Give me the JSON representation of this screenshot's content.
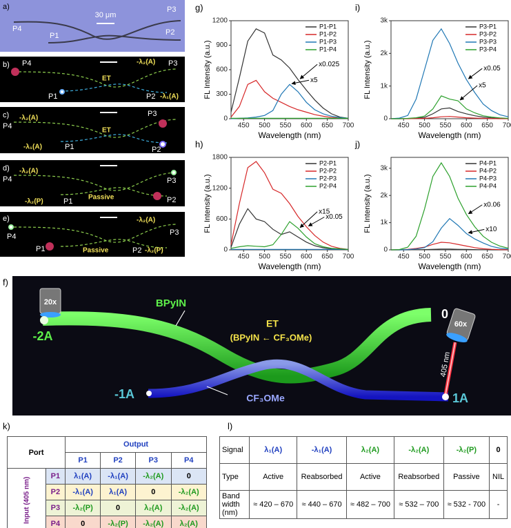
{
  "micrographs": {
    "a": {
      "panel": "a)",
      "scale_bar": "30 μm",
      "p3": "P3",
      "p4": "P4",
      "p1": "P1",
      "p2": "P2"
    },
    "b": {
      "panel": "b)",
      "p4": "P4",
      "upper_signal": "-λ₂(A)",
      "p3": "P3",
      "transfer": "ET",
      "p1": "P1",
      "p2": "P2",
      "lower_signal": "-λ₁(A)"
    },
    "c": {
      "panel": "c)",
      "p4": "P4",
      "upper_signal": "-λ₂(A)",
      "p3": "P3",
      "transfer": "ET",
      "lower_signal": "-λ₁(A)",
      "p1": "P1",
      "p2": "P2"
    },
    "d": {
      "panel": "d)",
      "p4": "P4",
      "upper_signal": "-λ₂(A)",
      "p3": "P3",
      "transfer": "Passive",
      "lower_signal": "-λ₂(P)",
      "p1": "P1",
      "p2": "P2"
    },
    "e": {
      "panel": "e)",
      "upper_signal": "-λ₂(A)",
      "p3": "P3",
      "p4": "P4",
      "p1": "P1",
      "transfer": "Passive",
      "p2": "P2",
      "lower_signal": "-λ₂(P)"
    }
  },
  "chart_data": [
    {
      "type": "line",
      "panel": "g)",
      "xlabel": "Wavelength (nm)",
      "ylabel": "FL Intensity (a.u.)",
      "x": [
        420,
        440,
        460,
        480,
        500,
        520,
        540,
        560,
        580,
        600,
        620,
        640,
        660,
        680,
        700
      ],
      "xlim": [
        420,
        700
      ],
      "xticks": [
        450,
        500,
        550,
        600,
        650,
        700
      ],
      "ylim": [
        0,
        1200
      ],
      "yticks": [
        0,
        300,
        600,
        900,
        1200
      ],
      "legend": "upper right",
      "series": [
        {
          "name": "P1-P1",
          "color": "#333333",
          "values": [
            80,
            500,
            950,
            1100,
            1050,
            780,
            720,
            620,
            480,
            350,
            230,
            130,
            60,
            20,
            5
          ]
        },
        {
          "name": "P1-P2",
          "color": "#d62728",
          "values": [
            20,
            150,
            420,
            470,
            330,
            250,
            200,
            150,
            110,
            80,
            50,
            30,
            15,
            8,
            5
          ]
        },
        {
          "name": "P1-P3",
          "color": "#1f77b4",
          "values": [
            0,
            5,
            10,
            20,
            40,
            100,
            300,
            420,
            330,
            200,
            110,
            60,
            30,
            15,
            5
          ]
        },
        {
          "name": "P1-P4",
          "color": "#2ca02c",
          "values": [
            5,
            5,
            5,
            5,
            5,
            5,
            5,
            5,
            5,
            5,
            5,
            5,
            5,
            5,
            5
          ]
        }
      ],
      "annotations": [
        "x0.025",
        "x5"
      ]
    },
    {
      "type": "line",
      "panel": "i)",
      "xlabel": "Wavelength (nm)",
      "ylabel": "FL Intensity (a.u.)",
      "x": [
        420,
        440,
        460,
        480,
        500,
        520,
        540,
        560,
        580,
        600,
        620,
        640,
        660,
        680,
        700
      ],
      "xlim": [
        420,
        700
      ],
      "xticks": [
        450,
        500,
        550,
        600,
        650,
        700
      ],
      "ylim": [
        0,
        3000
      ],
      "yticks": [
        0,
        {
          "value": 1000,
          "label": "1k"
        },
        {
          "value": 2000,
          "label": "2k"
        },
        {
          "value": 3000,
          "label": "3k"
        }
      ],
      "legend": "upper right",
      "series": [
        {
          "name": "P3-P1",
          "color": "#333333",
          "values": [
            0,
            0,
            5,
            15,
            40,
            150,
            300,
            330,
            220,
            150,
            90,
            50,
            25,
            10,
            5
          ]
        },
        {
          "name": "P3-P2",
          "color": "#d62728",
          "values": [
            0,
            0,
            0,
            5,
            10,
            30,
            60,
            70,
            50,
            30,
            20,
            10,
            5,
            0,
            0
          ]
        },
        {
          "name": "P3-P3",
          "color": "#1f77b4",
          "values": [
            0,
            20,
            100,
            600,
            1500,
            2400,
            2750,
            2300,
            1700,
            1200,
            800,
            450,
            250,
            120,
            60
          ]
        },
        {
          "name": "P3-P4",
          "color": "#2ca02c",
          "values": [
            0,
            0,
            10,
            30,
            80,
            300,
            700,
            600,
            550,
            300,
            180,
            90,
            50,
            25,
            10
          ]
        }
      ],
      "annotations": [
        "x0.05",
        "x5"
      ]
    },
    {
      "type": "line",
      "panel": "h)",
      "xlabel": "Wavelength (nm)",
      "ylabel": "FL Intensity (a.u.)",
      "x": [
        420,
        440,
        460,
        480,
        500,
        520,
        540,
        560,
        580,
        600,
        620,
        640,
        660,
        680,
        700
      ],
      "xlim": [
        420,
        700
      ],
      "xticks": [
        450,
        500,
        550,
        600,
        650,
        700
      ],
      "ylim": [
        0,
        1800
      ],
      "yticks": [
        0,
        600,
        1200,
        1800
      ],
      "legend": "upper right",
      "series": [
        {
          "name": "P2-P1",
          "color": "#333333",
          "values": [
            50,
            500,
            800,
            600,
            550,
            400,
            300,
            350,
            250,
            150,
            80,
            40,
            20,
            10,
            5
          ]
        },
        {
          "name": "P2-P2",
          "color": "#d62728",
          "values": [
            100,
            900,
            1600,
            1720,
            1500,
            1180,
            1100,
            900,
            650,
            450,
            280,
            150,
            70,
            30,
            10
          ]
        },
        {
          "name": "P2-P3",
          "color": "#1f77b4",
          "values": [
            10,
            10,
            10,
            10,
            10,
            10,
            10,
            10,
            10,
            10,
            10,
            10,
            10,
            10,
            10
          ]
        },
        {
          "name": "P2-P4",
          "color": "#2ca02c",
          "values": [
            30,
            60,
            80,
            70,
            60,
            100,
            300,
            550,
            420,
            250,
            120,
            60,
            30,
            20,
            10
          ]
        }
      ],
      "annotations": [
        "x0.05",
        "x15"
      ]
    },
    {
      "type": "line",
      "panel": "j)",
      "xlabel": "Wavelength (nm)",
      "ylabel": "FL Intensity (a.u.)",
      "x": [
        420,
        440,
        460,
        480,
        500,
        520,
        540,
        560,
        580,
        600,
        620,
        640,
        660,
        680,
        700
      ],
      "xlim": [
        420,
        700
      ],
      "xticks": [
        450,
        500,
        550,
        600,
        650,
        700
      ],
      "ylim": [
        0,
        3400
      ],
      "yticks": [
        0,
        {
          "value": 1000,
          "label": "1k"
        },
        {
          "value": 2000,
          "label": "2k"
        },
        {
          "value": 3000,
          "label": "3k"
        }
      ],
      "legend": "upper right",
      "series": [
        {
          "name": "P4-P1",
          "color": "#333333",
          "values": [
            0,
            0,
            0,
            5,
            10,
            20,
            30,
            30,
            20,
            15,
            10,
            5,
            0,
            0,
            0
          ]
        },
        {
          "name": "P4-P2",
          "color": "#d62728",
          "values": [
            0,
            0,
            20,
            50,
            100,
            200,
            280,
            260,
            200,
            140,
            80,
            40,
            20,
            10,
            5
          ]
        },
        {
          "name": "P4-P3",
          "color": "#1f77b4",
          "values": [
            0,
            0,
            10,
            30,
            80,
            300,
            800,
            1150,
            900,
            600,
            400,
            250,
            130,
            60,
            30
          ]
        },
        {
          "name": "P4-P4",
          "color": "#2ca02c",
          "values": [
            0,
            10,
            100,
            500,
            1500,
            2700,
            3200,
            2700,
            1900,
            1300,
            850,
            500,
            280,
            140,
            60
          ]
        }
      ],
      "annotations": [
        "x0.06",
        "x10"
      ]
    }
  ],
  "schematic": {
    "panel": "f)",
    "objective_left": "20x",
    "upper_fiber": "BPyIN",
    "process": "ET",
    "process_detail": "(BPyIN ← CF₃OMe)",
    "output_top_right": "0",
    "objective_right": "60x",
    "laser": "405 nm",
    "output_left_upper": "-2A",
    "output_left_lower": "-1A",
    "lower_fiber": "CF₃OMe",
    "input_right": "1A"
  },
  "port_table": {
    "panel": "k)",
    "corner": "Port",
    "output": "Output",
    "input": "Input (405 nm)",
    "columns": [
      "P1",
      "P2",
      "P3",
      "P4"
    ],
    "row_colors": [
      "#dbe5f5",
      "#fdf3d0",
      "#eef3d6",
      "#f9d9cc"
    ],
    "rows": [
      {
        "port": "P1",
        "cells": [
          "λ₁(A)",
          "-λ₁(A)",
          "-λ₂(A)",
          "0"
        ],
        "colors": [
          "#1f3fbf",
          "#1f3fbf",
          "#1e9a1e",
          "#000000"
        ]
      },
      {
        "port": "P2",
        "cells": [
          "-λ₁(A)",
          "λ₁(A)",
          "0",
          "-λ₂(A)"
        ],
        "colors": [
          "#1f3fbf",
          "#1f3fbf",
          "#000000",
          "#1e9a1e"
        ]
      },
      {
        "port": "P3",
        "cells": [
          "-λ₂(P)",
          "0",
          "λ₂(A)",
          "-λ₂(A)"
        ],
        "colors": [
          "#1e9a1e",
          "#000000",
          "#1e9a1e",
          "#1e9a1e"
        ]
      },
      {
        "port": "P4",
        "cells": [
          "0",
          "-λ₂(P)",
          "-λ₂(A)",
          "λ₂(A)"
        ],
        "colors": [
          "#000000",
          "#1e9a1e",
          "#1e9a1e",
          "#1e9a1e"
        ]
      }
    ]
  },
  "signal_table": {
    "panel": "l)",
    "header": [
      "Signal",
      "λ₁(A)",
      "-λ₁(A)",
      "λ₂(A)",
      "-λ₂(A)",
      "-λ₂(P)",
      "0"
    ],
    "header_colors": [
      "#000000",
      "#1f3fbf",
      "#1f3fbf",
      "#1e9a1e",
      "#1e9a1e",
      "#1e9a1e",
      "#000000"
    ],
    "rows": [
      [
        "Type",
        "Active",
        "Reabsorbed",
        "Active",
        "Reabsorbed",
        "Passive",
        "NIL"
      ],
      [
        "Band width (nm)",
        "≈ 420 – 670",
        "≈ 440 – 670",
        "≈ 482 – 700",
        "≈ 532 – 700",
        "≈ 532 - 700",
        "-"
      ]
    ]
  }
}
